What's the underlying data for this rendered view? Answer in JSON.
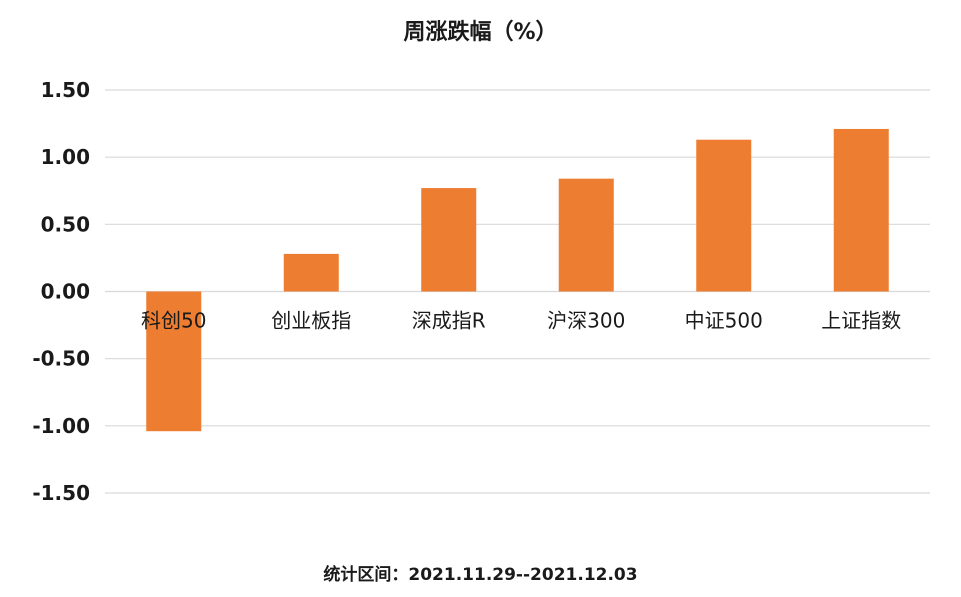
{
  "chart_data": {
    "type": "bar",
    "title": "周涨跌幅（%）",
    "categories": [
      "科创50",
      "创业板指",
      "深成指R",
      "沪深300",
      "中证500",
      "上证指数"
    ],
    "values": [
      -1.04,
      0.28,
      0.77,
      0.84,
      1.13,
      1.21
    ],
    "ylim": [
      -1.5,
      1.5
    ],
    "yticks": [
      "1.50",
      "1.00",
      "0.50",
      "0.00",
      "-0.50",
      "-1.00",
      "-1.50"
    ],
    "grid": true,
    "bar_color": "#ED7D31",
    "grid_color": "#D9D9D9"
  },
  "footer": {
    "note": "统计区间：2021.11.29--2021.12.03"
  }
}
